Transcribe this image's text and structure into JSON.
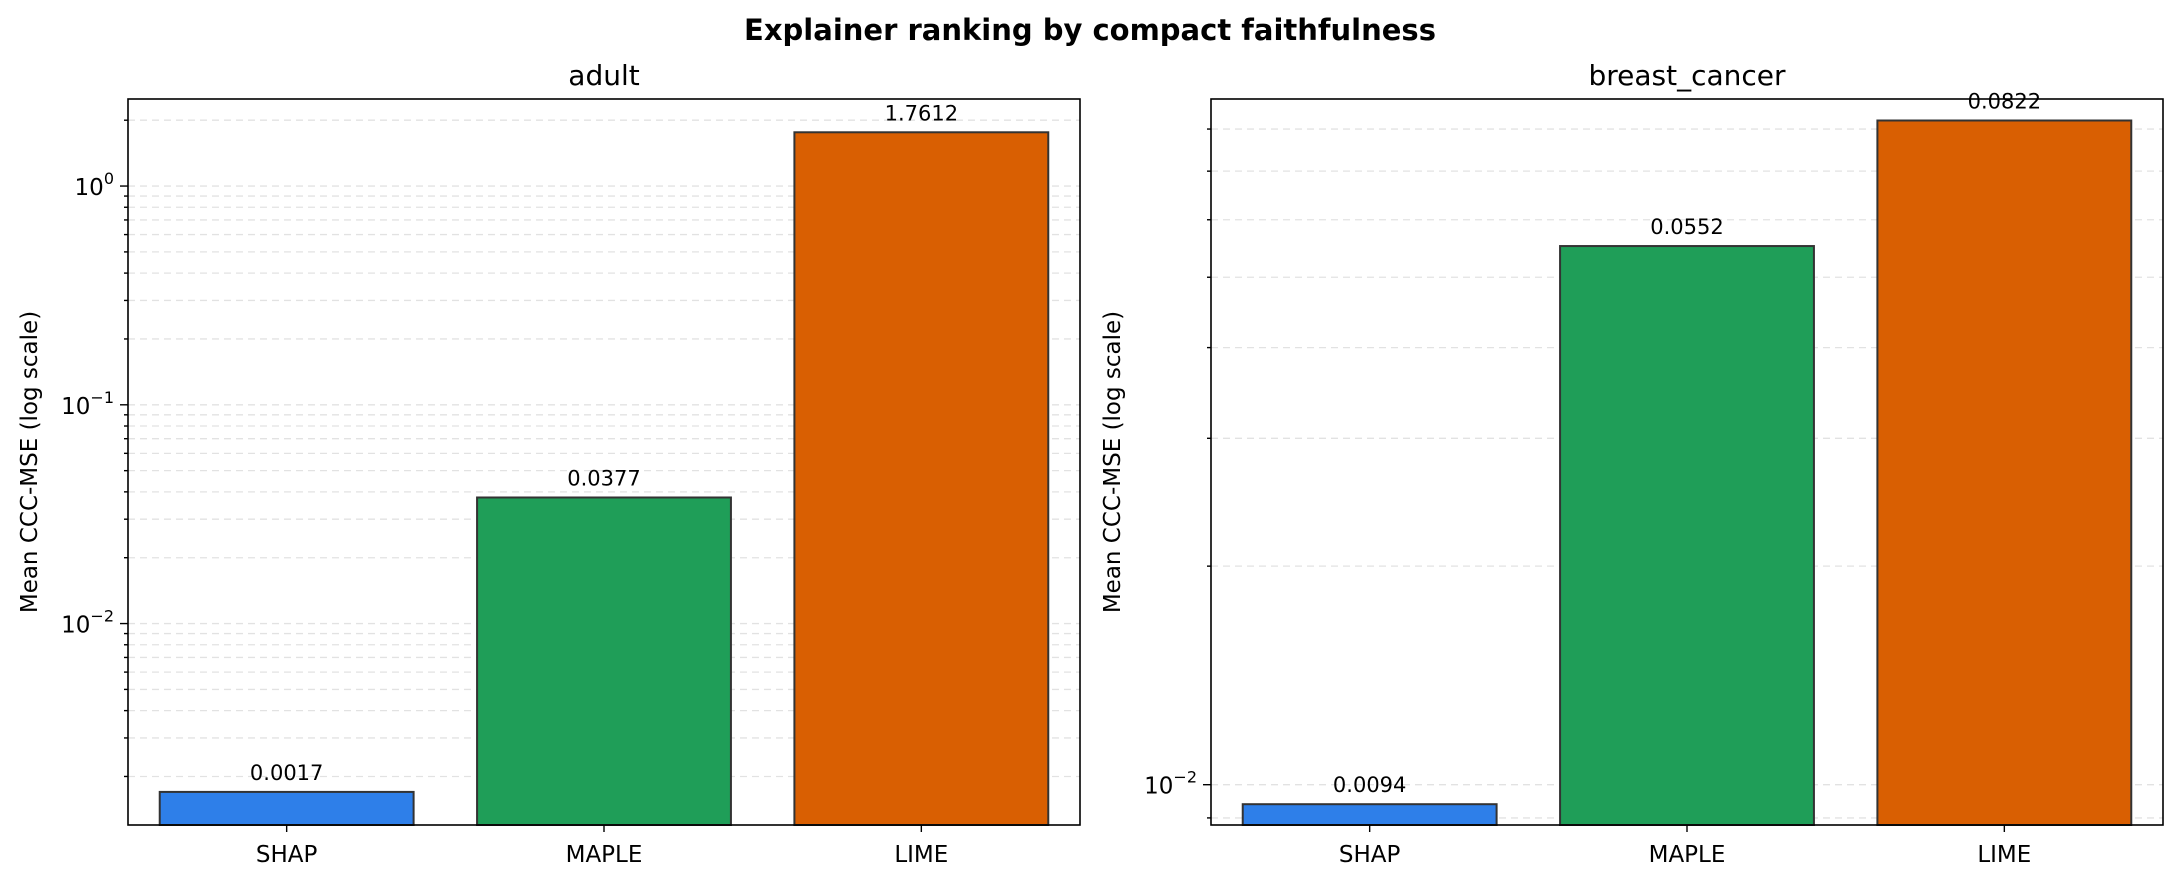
{
  "suptitle": "Explainer ranking by compact faithfulness",
  "chart_data": [
    {
      "type": "bar",
      "title": "adult",
      "ylabel": "Mean CCC-MSE (log scale)",
      "yscale": "log",
      "ylim": [
        0.0012,
        2.5
      ],
      "grid": true,
      "categories": [
        "SHAP",
        "MAPLE",
        "LIME"
      ],
      "values": [
        0.0017,
        0.0377,
        1.7612
      ],
      "value_labels": [
        "0.0017",
        "0.0377",
        "1.7612"
      ],
      "colors": [
        "#2e7fe9",
        "#1f9e58",
        "#d95f02"
      ],
      "major_ticks": [
        {
          "value": 0.01,
          "base": "10",
          "exp": "−2"
        },
        {
          "value": 0.1,
          "base": "10",
          "exp": "−1"
        },
        {
          "value": 1,
          "base": "10",
          "exp": "0"
        }
      ]
    },
    {
      "type": "bar",
      "title": "breast_cancer",
      "ylabel": "Mean CCC-MSE (log scale)",
      "yscale": "log",
      "ylim": [
        0.0088,
        0.088
      ],
      "grid": true,
      "categories": [
        "SHAP",
        "MAPLE",
        "LIME"
      ],
      "values": [
        0.0094,
        0.0552,
        0.0822
      ],
      "value_labels": [
        "0.0094",
        "0.0552",
        "0.0822"
      ],
      "colors": [
        "#2e7fe9",
        "#1f9e58",
        "#d95f02"
      ],
      "major_ticks": [
        {
          "value": 0.01,
          "base": "10",
          "exp": "−2"
        }
      ]
    }
  ]
}
